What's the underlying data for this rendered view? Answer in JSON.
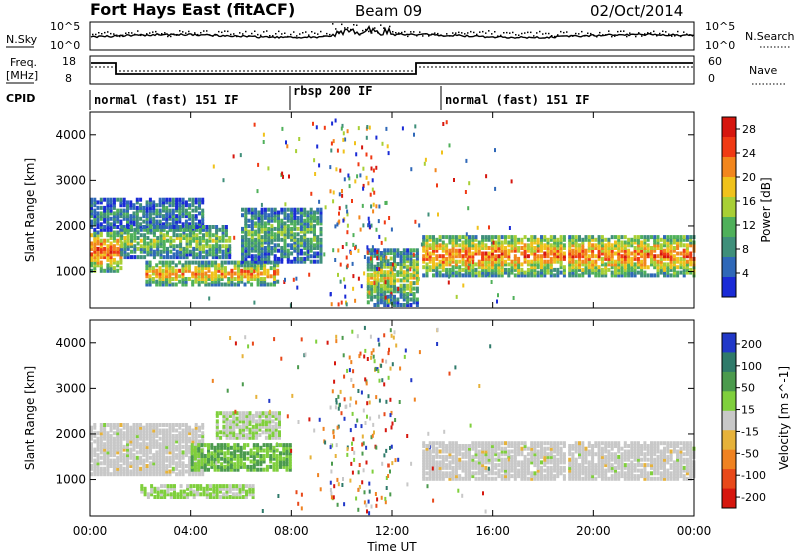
{
  "header": {
    "radar": "Fort Hays East (fitACF)",
    "beam": "Beam 09",
    "date": "02/Oct/2014"
  },
  "noise_panel": {
    "left_label": "N.Sky",
    "right_label": "N.Search",
    "left_ticks": [
      "10^5",
      "10^0"
    ],
    "right_ticks": [
      "10^5",
      "10^0"
    ]
  },
  "freq_panel": {
    "left_label_1": "Freq.",
    "left_label_2": "[MHz]",
    "right_label": "Nave",
    "left_ticks": [
      "18",
      "8"
    ],
    "right_ticks": [
      "60",
      "0"
    ]
  },
  "cpid_panel": {
    "label": "CPID",
    "segments": [
      "normal (fast) 151 IF",
      "rbsp 200 IF",
      "normal (fast) 151 IF"
    ]
  },
  "colors": {
    "power_scale": [
      "#1a2bd6",
      "#2f68b8",
      "#3f8f7a",
      "#4fb05a",
      "#a8cf35",
      "#f0c21b",
      "#f2861c",
      "#f03a14",
      "#d6160e"
    ],
    "velocity_scale": [
      "#2138c8",
      "#2f7a6a",
      "#4b9a4d",
      "#7fcf3c",
      "#c8c8c8",
      "#e6b23a",
      "#ef8221",
      "#e8491a",
      "#d6170e"
    ]
  },
  "chart_data": [
    {
      "type": "heatmap",
      "title": "Power",
      "xlabel": "Time UT",
      "ylabel": "Slant Range [km]",
      "x_ticks": [
        "00:00",
        "04:00",
        "08:00",
        "12:00",
        "16:00",
        "20:00",
        "00:00"
      ],
      "y_ticks": [
        "1000",
        "2000",
        "3000",
        "4000"
      ],
      "xlim": [
        0,
        24
      ],
      "ylim": [
        200,
        4500
      ],
      "colorbar": {
        "label": "Power [dB]",
        "ticks": [
          "4",
          "8",
          "12",
          "16",
          "20",
          "24",
          "28"
        ],
        "range": [
          0,
          30
        ]
      },
      "bands": [
        {
          "t0": 0,
          "t1": 1.2,
          "r0": 1000,
          "r1": 1900,
          "level": 26
        },
        {
          "t0": 0,
          "t1": 4.5,
          "r0": 1900,
          "r1": 2600,
          "level": 8
        },
        {
          "t0": 1.2,
          "t1": 5.5,
          "r0": 1300,
          "r1": 2000,
          "level": 15
        },
        {
          "t0": 2.2,
          "t1": 7.5,
          "r0": 700,
          "r1": 1200,
          "level": 22
        },
        {
          "t0": 6.0,
          "t1": 9.2,
          "r0": 1200,
          "r1": 2400,
          "level": 12
        },
        {
          "t0": 11.0,
          "t1": 13.0,
          "r0": 250,
          "r1": 1500,
          "level": 16
        },
        {
          "t0": 13.2,
          "t1": 18.8,
          "r0": 900,
          "r1": 1800,
          "level": 24
        },
        {
          "t0": 19.0,
          "t1": 24,
          "r0": 900,
          "r1": 1800,
          "level": 24
        }
      ]
    },
    {
      "type": "heatmap",
      "title": "Velocity",
      "xlabel": "Time UT",
      "ylabel": "Slant Range [km]",
      "x_ticks": [
        "00:00",
        "04:00",
        "08:00",
        "12:00",
        "16:00",
        "20:00",
        "00:00"
      ],
      "y_ticks": [
        "1000",
        "2000",
        "3000",
        "4000"
      ],
      "xlim": [
        0,
        24
      ],
      "ylim": [
        200,
        4500
      ],
      "colorbar": {
        "label": "Velocity [m s^-1]",
        "ticks": [
          "200",
          "100",
          "50",
          "15",
          "-15",
          "-50",
          "-100",
          "-200"
        ],
        "range": [
          -250,
          250
        ]
      },
      "bands": [
        {
          "t0": 0,
          "t1": 4.5,
          "r0": 1100,
          "r1": 2200,
          "level": 0
        },
        {
          "t0": 2.0,
          "t1": 6.5,
          "r0": 600,
          "r1": 900,
          "level": 40
        },
        {
          "t0": 4.0,
          "t1": 8.0,
          "r0": 1200,
          "r1": 1800,
          "level": 80
        },
        {
          "t0": 5.0,
          "t1": 7.5,
          "r0": 1900,
          "r1": 2500,
          "level": 30
        },
        {
          "t0": 13.2,
          "t1": 18.8,
          "r0": 1000,
          "r1": 1800,
          "level": 0
        },
        {
          "t0": 19.0,
          "t1": 24,
          "r0": 1000,
          "r1": 1800,
          "level": 0
        }
      ]
    }
  ]
}
